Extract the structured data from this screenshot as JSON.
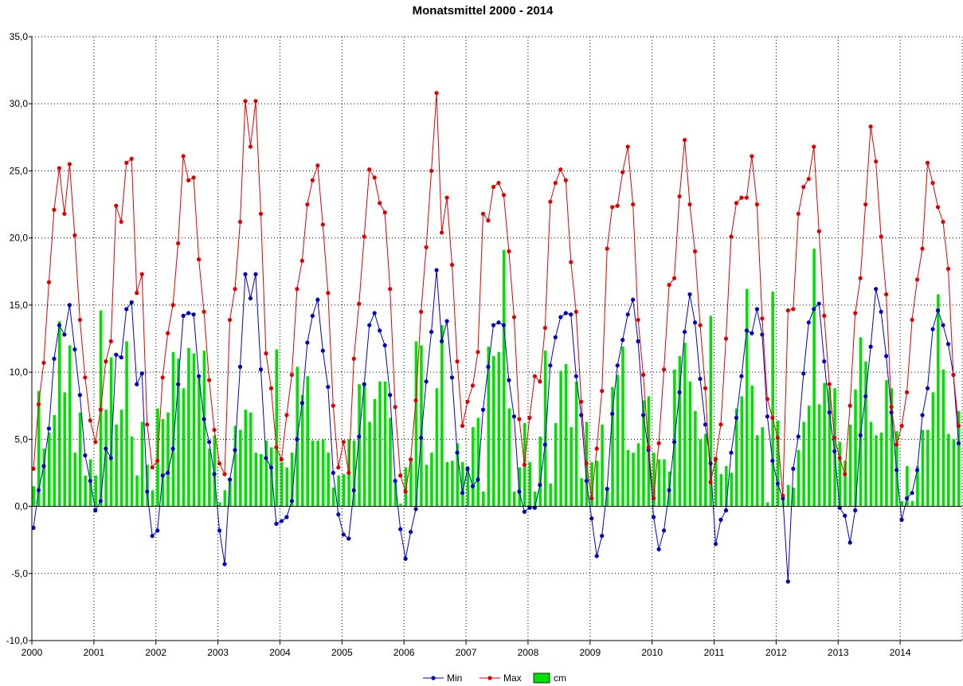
{
  "chart_data": {
    "type": "bar+line",
    "title": "Monatsmittel 2000 - 2014",
    "xlabel": "",
    "ylabel": "",
    "ylim": [
      -10,
      35
    ],
    "y_ticks": [
      "35,0",
      "30,0",
      "25,0",
      "20,0",
      "15,0",
      "10,0",
      "5,0",
      "0,0",
      "-5,0",
      "-10,0"
    ],
    "x_tick_labels": [
      "2000",
      "2001",
      "2002",
      "2003",
      "2004",
      "2005",
      "2006",
      "2007",
      "2008",
      "2009",
      "2010",
      "2011",
      "2012",
      "2013",
      "2014"
    ],
    "grid": true,
    "legend_position": "bottom-center",
    "frequency": "monthly",
    "start": "2000-01",
    "series": [
      {
        "name": "Min",
        "kind": "line",
        "color": "#0000c0",
        "values": [
          -1.6,
          1.2,
          3.0,
          5.8,
          11.0,
          13.5,
          12.8,
          15.0,
          11.7,
          8.3,
          3.8,
          1.9,
          -0.3,
          0.4,
          4.3,
          3.6,
          11.3,
          11.1,
          14.7,
          15.2,
          9.1,
          9.9,
          1.1,
          -2.2,
          -1.8,
          2.3,
          2.5,
          4.3,
          9.1,
          14.2,
          14.4,
          14.3,
          9.7,
          6.5,
          4.8,
          2.4,
          -1.8,
          -4.3,
          2.0,
          4.2,
          10.4,
          17.3,
          15.5,
          17.3,
          10.2,
          3.6,
          2.9,
          -1.3,
          -1.1,
          -0.8,
          0.4,
          5.0,
          7.7,
          12.2,
          14.2,
          15.4,
          11.6,
          8.9,
          2.5,
          -0.6,
          -2.1,
          -2.4,
          1.2,
          5.2,
          9.1,
          13.5,
          14.4,
          13.1,
          12.0,
          8.3,
          1.9,
          -1.7,
          -3.9,
          -1.9,
          -0.2,
          5.1,
          9.3,
          13.0,
          17.6,
          12.3,
          13.8,
          9.6,
          4.0,
          1.0,
          2.8,
          1.5,
          2.0,
          7.2,
          10.4,
          13.5,
          13.7,
          13.5,
          9.4,
          6.7,
          1.1,
          -0.4,
          -0.1,
          -0.1,
          1.6,
          4.6,
          10.5,
          12.6,
          14.1,
          14.4,
          14.3,
          9.7,
          6.8,
          1.9,
          -0.9,
          -3.7,
          -2.2,
          1.3,
          6.9,
          10.5,
          12.4,
          14.3,
          15.4,
          12.3,
          6.8,
          4.2,
          -0.8,
          -3.2,
          -1.8,
          1.2,
          4.8,
          8.5,
          13.0,
          15.8,
          13.7,
          9.5,
          6.1,
          3.2,
          -2.8,
          -1.0,
          -0.3,
          4.0,
          6.6,
          9.7,
          13.1,
          12.9,
          14.7,
          12.8,
          6.7,
          3.4,
          1.7,
          0.6,
          -5.6,
          2.8,
          5.2,
          9.9,
          13.7,
          14.7,
          15.1,
          10.8,
          7.0,
          4.1,
          -0.1,
          -0.7,
          -2.7,
          -0.3,
          5.3,
          8.2,
          11.9,
          16.2,
          14.5,
          11.2,
          7.0,
          2.7,
          -1.0,
          0.6,
          1.0,
          2.7,
          6.8,
          8.8,
          13.2,
          14.6,
          13.5,
          12.1,
          9.8,
          4.7
        ]
      },
      {
        "name": "Max",
        "kind": "line",
        "color": "#e00000",
        "values": [
          2.8,
          7.6,
          10.7,
          16.7,
          22.1,
          25.2,
          21.8,
          25.5,
          20.2,
          13.9,
          9.6,
          6.4,
          4.8,
          7.2,
          10.8,
          12.3,
          22.4,
          21.2,
          25.6,
          25.9,
          15.9,
          17.3,
          6.1,
          2.9,
          3.4,
          9.6,
          12.9,
          15.0,
          19.6,
          26.1,
          24.3,
          24.5,
          18.4,
          14.5,
          9.4,
          5.7,
          3.2,
          2.4,
          13.9,
          16.2,
          21.2,
          30.2,
          26.8,
          30.2,
          21.8,
          11.4,
          8.8,
          4.4,
          3.5,
          6.8,
          9.8,
          16.2,
          18.3,
          22.5,
          24.3,
          25.4,
          21.0,
          15.9,
          7.5,
          2.9,
          4.8,
          2.5,
          11.0,
          15.1,
          20.1,
          25.1,
          24.5,
          22.6,
          21.9,
          16.2,
          7.4,
          2.3,
          1.1,
          3.5,
          7.9,
          14.5,
          19.3,
          25.0,
          30.8,
          20.4,
          23.0,
          18.0,
          10.8,
          6.0,
          7.8,
          9.0,
          11.5,
          21.8,
          21.3,
          23.8,
          24.1,
          23.2,
          19.0,
          14.1,
          6.5,
          3.1,
          6.6,
          9.7,
          9.3,
          13.3,
          22.7,
          24.1,
          25.1,
          24.3,
          18.2,
          14.5,
          7.8,
          3.2,
          0.6,
          4.3,
          8.6,
          19.2,
          22.3,
          22.4,
          24.9,
          26.8,
          22.5,
          13.9,
          9.8,
          4.4,
          0.6,
          4.7,
          10.2,
          16.5,
          17.0,
          23.1,
          27.3,
          22.5,
          19.0,
          13.5,
          8.8,
          1.8,
          3.5,
          6.1,
          12.5,
          20.1,
          22.6,
          23.0,
          23.0,
          26.1,
          22.5,
          14.0,
          8.0,
          6.6,
          5.1,
          0.8,
          14.6,
          14.7,
          21.8,
          23.8,
          24.4,
          26.8,
          20.5,
          14.2,
          9.1,
          5.1,
          3.6,
          2.4,
          7.5,
          14.4,
          17.0,
          22.5,
          28.3,
          25.7,
          20.1,
          15.8,
          7.4,
          4.6,
          6.0,
          8.5,
          13.9,
          16.9,
          19.2,
          25.6,
          24.1,
          22.3,
          21.2,
          17.7,
          9.8,
          6.0
        ]
      },
      {
        "name": "cm",
        "kind": "bar",
        "color": "#00e000",
        "values": [
          1.5,
          8.6,
          4.3,
          5.5,
          6.8,
          13.8,
          8.5,
          12.0,
          4.0,
          7.0,
          2.3,
          3.5,
          2.3,
          14.6,
          7.2,
          11.1,
          6.1,
          7.2,
          12.3,
          5.2,
          2.3,
          6.3,
          3.1,
          1.2,
          7.3,
          6.5,
          7.0,
          11.5,
          11.0,
          8.8,
          11.8,
          11.4,
          9.8,
          11.6,
          4.3,
          5.3,
          0.3,
          1.2,
          2.0,
          6.0,
          5.7,
          7.2,
          7.0,
          4.0,
          3.9,
          4.9,
          4.4,
          11.7,
          3.3,
          2.9,
          4.0,
          10.4,
          8.3,
          9.7,
          4.9,
          4.9,
          5.0,
          4.0,
          1.4,
          2.3,
          2.4,
          5.0,
          4.9,
          9.1,
          9.2,
          6.3,
          8.0,
          9.3,
          9.3,
          6.6,
          2.0,
          0.2,
          2.9,
          3.5,
          12.3,
          12.0,
          3.1,
          4.0,
          8.8,
          13.5,
          3.3,
          3.4,
          4.7,
          3.3,
          3.0,
          5.9,
          6.6,
          1.1,
          11.9,
          11.2,
          11.5,
          19.1,
          7.3,
          1.1,
          2.9,
          6.2,
          3.3,
          1.1,
          5.2,
          11.6,
          1.7,
          6.2,
          10.1,
          10.6,
          5.9,
          9.3,
          2.1,
          6.3,
          3.3,
          3.4,
          6.1,
          1.4,
          8.9,
          9.8,
          11.9,
          4.2,
          4.0,
          4.7,
          7.9,
          8.2,
          4.0,
          3.5,
          3.5,
          2.6,
          10.2,
          11.2,
          12.2,
          9.3,
          7.1,
          5.0,
          5.4,
          14.2,
          3.7,
          2.4,
          3.0,
          2.5,
          7.3,
          8.2,
          16.2,
          9.0,
          5.3,
          5.9,
          0.3,
          16.0,
          6.4,
          0.8,
          1.6,
          1.4,
          4.2,
          6.3,
          7.5,
          19.2,
          7.6,
          9.2,
          8.9,
          8.8,
          4.8,
          3.4,
          6.1,
          8.7,
          12.6,
          10.8,
          6.3,
          5.3,
          5.5,
          9.4,
          8.8,
          5.6,
          0.4,
          3.0,
          0.4,
          3.0,
          5.7,
          5.7,
          8.5,
          15.8,
          10.2,
          5.4,
          5.0,
          7.1
        ]
      }
    ]
  }
}
